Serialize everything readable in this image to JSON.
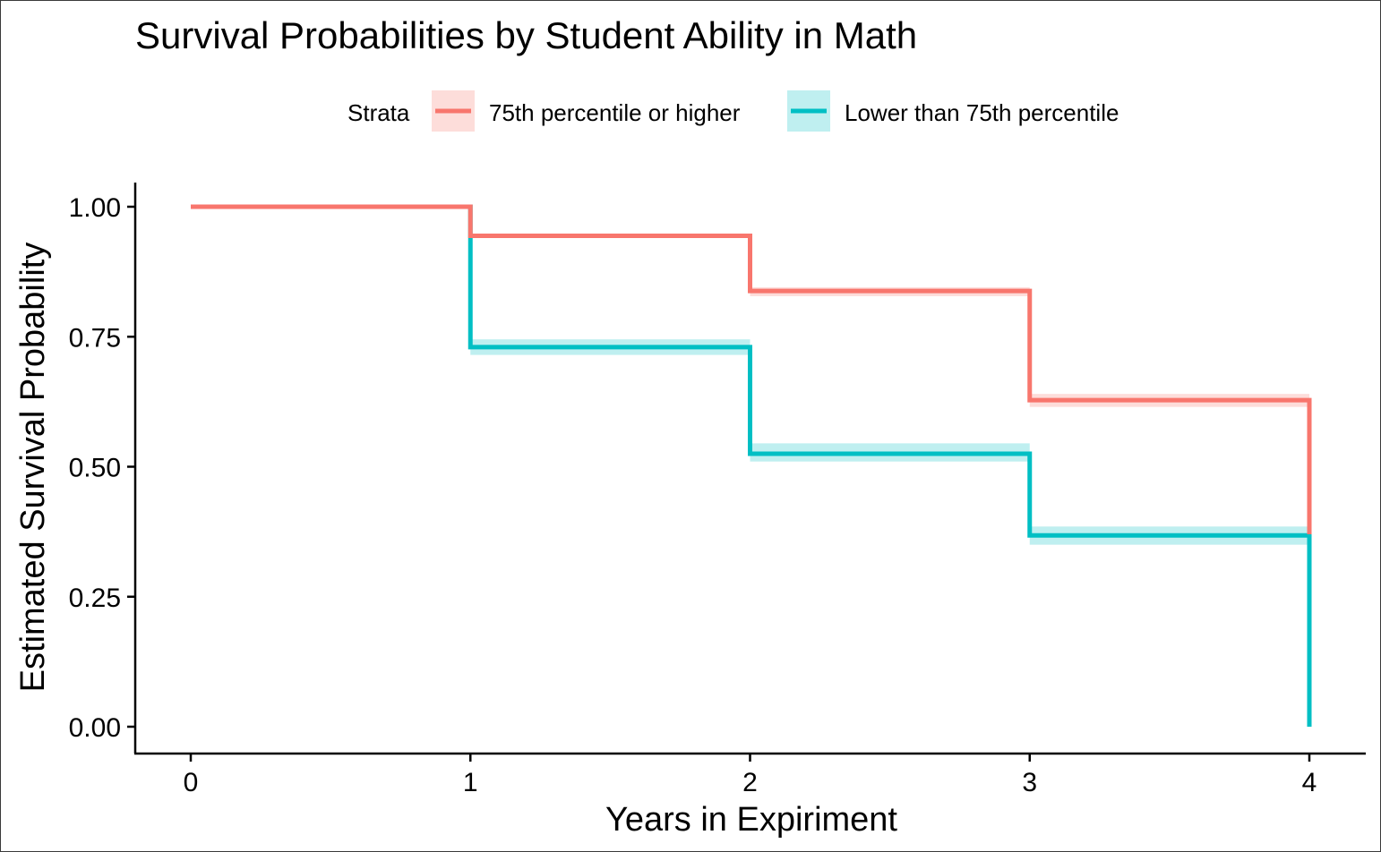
{
  "chart_data": {
    "type": "line",
    "step": true,
    "title": "Survival Probabilities by Student Ability in Math",
    "xlabel": "Years in Expiriment",
    "ylabel": "Estimated Survival Probability",
    "xlim": [
      0,
      4
    ],
    "ylim": [
      0,
      1
    ],
    "x_ticks": [
      "0",
      "1",
      "2",
      "3",
      "4"
    ],
    "y_ticks": [
      "0.00",
      "0.25",
      "0.50",
      "0.75",
      "1.00"
    ],
    "grid": false,
    "legend": {
      "title": "Strata",
      "placement": "top"
    },
    "series": [
      {
        "name": "75th percentile or higher",
        "color": "#F8766D",
        "x": [
          0,
          1,
          2,
          3,
          4
        ],
        "y": [
          1.0,
          0.944,
          0.838,
          0.628,
          0.37
        ],
        "ci": [
          [
            1.0,
            1.0
          ],
          [
            0.94,
            0.948
          ],
          [
            0.828,
            0.845
          ],
          [
            0.615,
            0.64
          ],
          [
            0.37,
            0.37
          ]
        ]
      },
      {
        "name": "Lower than 75th percentile",
        "color": "#00BFC4",
        "x": [
          0,
          1,
          2,
          3,
          4
        ],
        "y": [
          1.0,
          0.73,
          0.525,
          0.368,
          0.0
        ],
        "ci": [
          [
            1.0,
            1.0
          ],
          [
            0.715,
            0.745
          ],
          [
            0.51,
            0.545
          ],
          [
            0.35,
            0.385
          ],
          [
            0.0,
            0.0
          ]
        ]
      }
    ]
  }
}
